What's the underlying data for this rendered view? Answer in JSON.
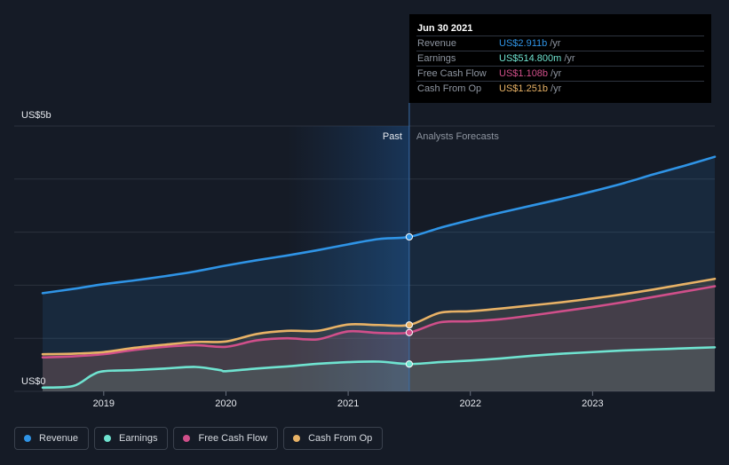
{
  "tooltip": {
    "date": "Jun 30 2021",
    "rows": [
      {
        "label": "Revenue",
        "value": "US$2.911b",
        "unit": "/yr",
        "color": "#2f94e6"
      },
      {
        "label": "Earnings",
        "value": "US$514.800m",
        "unit": "/yr",
        "color": "#6fe3d0"
      },
      {
        "label": "Free Cash Flow",
        "value": "US$1.108b",
        "unit": "/yr",
        "color": "#d04f8a"
      },
      {
        "label": "Cash From Op",
        "value": "US$1.251b",
        "unit": "/yr",
        "color": "#e8b266"
      }
    ]
  },
  "legend": [
    {
      "label": "Revenue",
      "color": "#2f94e6"
    },
    {
      "label": "Earnings",
      "color": "#6fe3d0"
    },
    {
      "label": "Free Cash Flow",
      "color": "#d04f8a"
    },
    {
      "label": "Cash From Op",
      "color": "#e8b266"
    }
  ],
  "chart_data": {
    "type": "line",
    "ylabel_top": "US$5b",
    "ylabel_bottom": "US$0",
    "ylim": [
      0,
      5
    ],
    "xlim": [
      2018.5,
      2024.0
    ],
    "past_label": "Past",
    "forecast_label": "Analysts Forecasts",
    "divider_x": 2021.5,
    "x_ticks": [
      "2019",
      "2020",
      "2021",
      "2022",
      "2023"
    ],
    "x_tick_values": [
      2019,
      2020,
      2021,
      2022,
      2023
    ],
    "grid": true,
    "series": [
      {
        "name": "Revenue",
        "color": "#2f94e6",
        "x": [
          2018.5,
          2018.75,
          2019.0,
          2019.25,
          2019.5,
          2019.75,
          2020.0,
          2020.25,
          2020.5,
          2020.75,
          2021.0,
          2021.25,
          2021.5,
          2021.75,
          2022.0,
          2022.25,
          2022.5,
          2022.75,
          2023.0,
          2023.25,
          2023.5,
          2023.75,
          2024.0
        ],
        "values": [
          1.85,
          1.93,
          2.02,
          2.09,
          2.17,
          2.26,
          2.37,
          2.47,
          2.56,
          2.66,
          2.77,
          2.87,
          2.911,
          3.08,
          3.23,
          3.37,
          3.5,
          3.63,
          3.77,
          3.92,
          4.09,
          4.25,
          4.42
        ]
      },
      {
        "name": "Earnings",
        "color": "#6fe3d0",
        "x": [
          2018.5,
          2018.75,
          2018.9,
          2019.0,
          2019.25,
          2019.5,
          2019.75,
          2019.95,
          2020.0,
          2020.25,
          2020.5,
          2020.75,
          2021.0,
          2021.25,
          2021.5,
          2021.75,
          2022.0,
          2022.25,
          2022.5,
          2022.75,
          2023.0,
          2023.25,
          2023.5,
          2023.75,
          2024.0
        ],
        "values": [
          0.07,
          0.1,
          0.3,
          0.38,
          0.4,
          0.43,
          0.46,
          0.4,
          0.38,
          0.43,
          0.47,
          0.52,
          0.55,
          0.56,
          0.5148,
          0.55,
          0.58,
          0.62,
          0.67,
          0.71,
          0.74,
          0.77,
          0.79,
          0.81,
          0.83
        ]
      },
      {
        "name": "Free Cash Flow",
        "color": "#d04f8a",
        "x": [
          2018.5,
          2018.75,
          2019.0,
          2019.25,
          2019.5,
          2019.75,
          2020.0,
          2020.25,
          2020.5,
          2020.75,
          2021.0,
          2021.25,
          2021.5,
          2021.75,
          2022.0,
          2022.25,
          2022.5,
          2022.75,
          2023.0,
          2023.25,
          2023.5,
          2023.75,
          2024.0
        ],
        "values": [
          0.64,
          0.66,
          0.7,
          0.78,
          0.84,
          0.87,
          0.84,
          0.96,
          1.0,
          0.98,
          1.13,
          1.1,
          1.108,
          1.3,
          1.32,
          1.36,
          1.43,
          1.51,
          1.59,
          1.68,
          1.78,
          1.88,
          1.98
        ]
      },
      {
        "name": "Cash From Op",
        "color": "#e8b266",
        "x": [
          2018.5,
          2018.75,
          2019.0,
          2019.25,
          2019.5,
          2019.75,
          2020.0,
          2020.25,
          2020.5,
          2020.75,
          2021.0,
          2021.25,
          2021.5,
          2021.75,
          2022.0,
          2022.25,
          2022.5,
          2022.75,
          2023.0,
          2023.25,
          2023.5,
          2023.75,
          2024.0
        ],
        "values": [
          0.7,
          0.71,
          0.74,
          0.82,
          0.88,
          0.93,
          0.94,
          1.08,
          1.14,
          1.14,
          1.26,
          1.25,
          1.251,
          1.48,
          1.51,
          1.56,
          1.62,
          1.68,
          1.75,
          1.83,
          1.92,
          2.02,
          2.12
        ]
      }
    ]
  }
}
